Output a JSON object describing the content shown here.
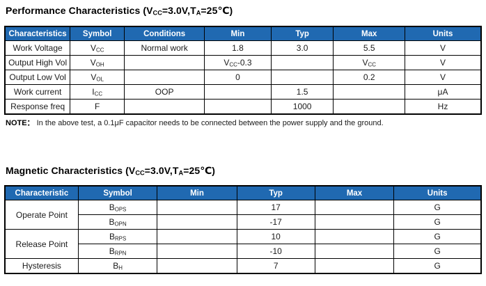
{
  "colors": {
    "table_header_bg": "#2069B1",
    "table_header_text": "#FFFFFF",
    "table_border": "#000000"
  },
  "sections": [
    {
      "id": "performance",
      "title": "Performance Characteristics (V~CC~=3.0V,T~A~=25℃)",
      "note_label": "NOTE：",
      "note_text": "In the above test, a 0.1μF capacitor needs to be connected between the power supply and the ground.",
      "table": {
        "columns": [
          {
            "label": "Characteristics",
            "width": 13.7
          },
          {
            "label": "Symbol",
            "width": 11.4
          },
          {
            "label": "Conditions",
            "width": 16.8
          },
          {
            "label": "Min",
            "width": 14.0
          },
          {
            "label": "Typ",
            "width": 13.1
          },
          {
            "label": "Max",
            "width": 15.0
          },
          {
            "label": "Units",
            "width": 16.0
          }
        ],
        "rows": [
          [
            {
              "t": "Work Voltage"
            },
            {
              "t": "V~CC~"
            },
            {
              "t": "Normal work"
            },
            {
              "t": "1.8"
            },
            {
              "t": "3.0"
            },
            {
              "t": "5.5"
            },
            {
              "t": "V"
            }
          ],
          [
            {
              "t": "Output High Vol"
            },
            {
              "t": "V~OH~"
            },
            {
              "t": ""
            },
            {
              "t": "V~CC~-0.3"
            },
            {
              "t": ""
            },
            {
              "t": "V~CC~"
            },
            {
              "t": "V"
            }
          ],
          [
            {
              "t": "Output Low Vol"
            },
            {
              "t": "V~OL~"
            },
            {
              "t": ""
            },
            {
              "t": "0"
            },
            {
              "t": ""
            },
            {
              "t": "0.2"
            },
            {
              "t": "V"
            }
          ],
          [
            {
              "t": "Work current"
            },
            {
              "t": "I~CC~"
            },
            {
              "t": "OOP"
            },
            {
              "t": ""
            },
            {
              "t": "1.5"
            },
            {
              "t": ""
            },
            {
              "t": "μA"
            }
          ],
          [
            {
              "t": "Response freq"
            },
            {
              "t": "F"
            },
            {
              "t": ""
            },
            {
              "t": ""
            },
            {
              "t": "1000"
            },
            {
              "t": ""
            },
            {
              "t": "Hz"
            }
          ]
        ]
      }
    },
    {
      "id": "magnetic",
      "title": "Magnetic Characteristics (V~CC~=3.0V,T~A~=25℃)",
      "table": {
        "columns": [
          {
            "label": "Characteristic",
            "width": 15.4
          },
          {
            "label": "Symbol",
            "width": 16.6
          },
          {
            "label": "Min",
            "width": 16.7
          },
          {
            "label": "Typ",
            "width": 16.4
          },
          {
            "label": "Max",
            "width": 16.6
          },
          {
            "label": "Units",
            "width": 18.3
          }
        ],
        "rows": [
          [
            {
              "t": "Operate Point",
              "rowspan": 2
            },
            {
              "t": "B~OPS~"
            },
            {
              "t": ""
            },
            {
              "t": "17"
            },
            {
              "t": ""
            },
            {
              "t": "G"
            }
          ],
          [
            {
              "t": "B~OPN~"
            },
            {
              "t": ""
            },
            {
              "t": "-17"
            },
            {
              "t": ""
            },
            {
              "t": "G"
            }
          ],
          [
            {
              "t": "Release Point",
              "rowspan": 2
            },
            {
              "t": "B~RPS~"
            },
            {
              "t": ""
            },
            {
              "t": "10"
            },
            {
              "t": ""
            },
            {
              "t": "G"
            }
          ],
          [
            {
              "t": "B~RPN~"
            },
            {
              "t": ""
            },
            {
              "t": "-10"
            },
            {
              "t": ""
            },
            {
              "t": "G"
            }
          ],
          [
            {
              "t": "Hysteresis"
            },
            {
              "t": "B~H~"
            },
            {
              "t": ""
            },
            {
              "t": "7"
            },
            {
              "t": ""
            },
            {
              "t": "G"
            }
          ]
        ]
      }
    }
  ]
}
